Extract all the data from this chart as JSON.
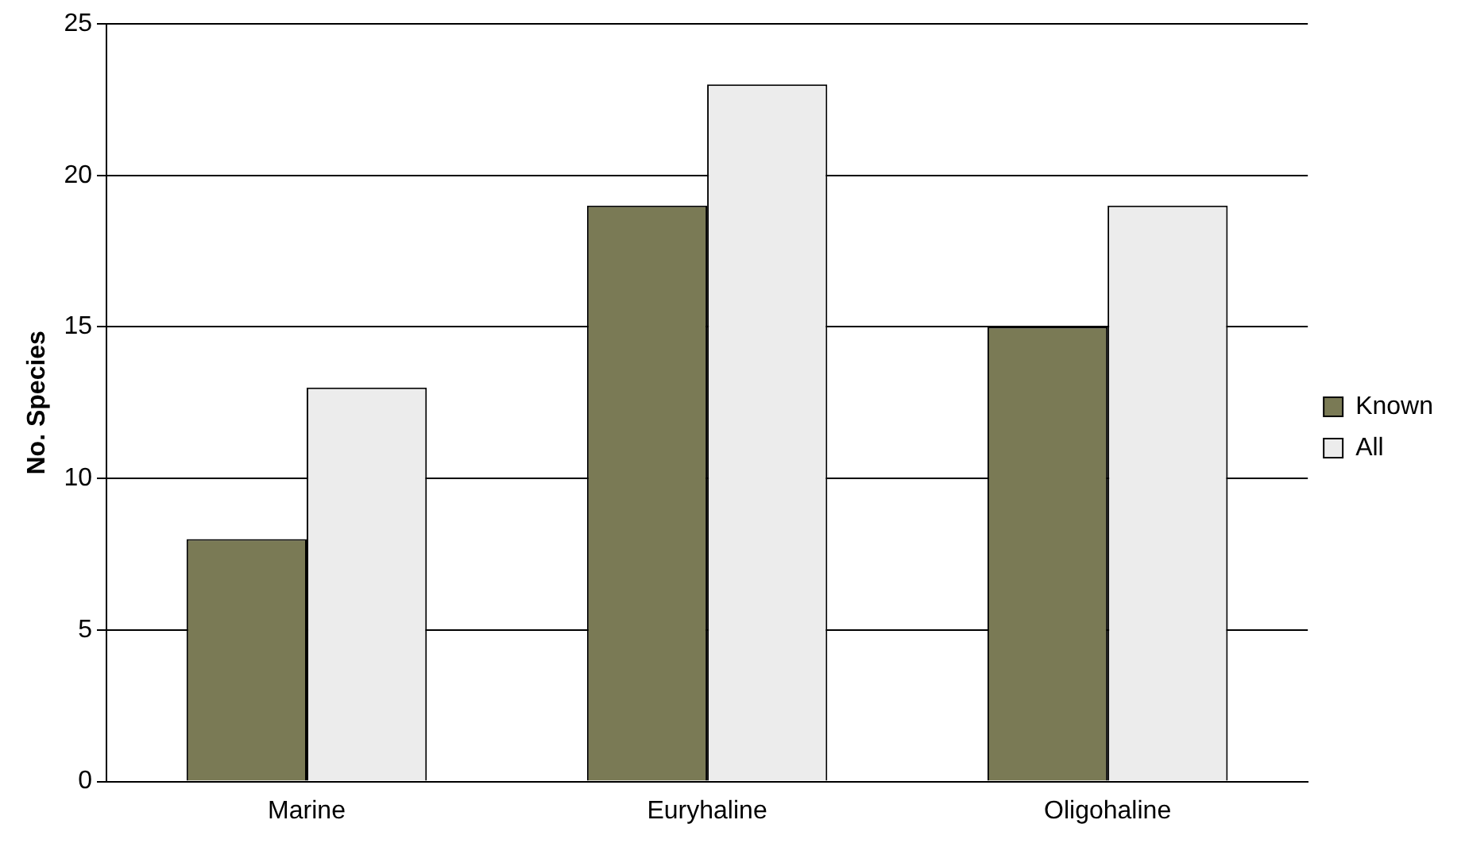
{
  "chart_data": {
    "type": "bar",
    "ylabel": "No. Species",
    "categories": [
      "Marine",
      "Euryhaline",
      "Oligohaline"
    ],
    "series": [
      {
        "name": "Known",
        "color": "#7a7a55",
        "values": [
          8,
          19,
          15
        ]
      },
      {
        "name": "All",
        "color": "#ececec",
        "values": [
          13,
          23,
          19
        ]
      }
    ],
    "ylim": [
      0,
      25
    ],
    "yticks": [
      0,
      5,
      10,
      15,
      20,
      25
    ],
    "grid": "y",
    "legend": "right"
  }
}
